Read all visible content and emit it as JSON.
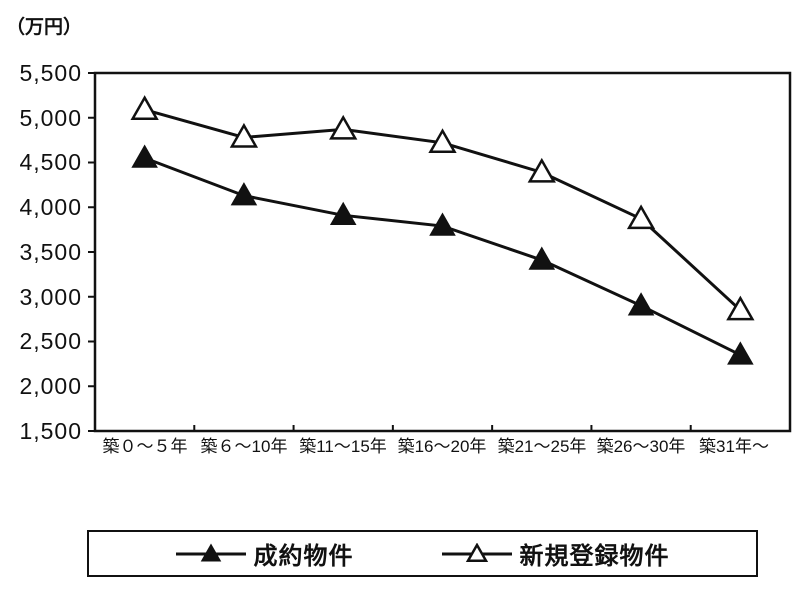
{
  "chart_data": {
    "type": "line",
    "title": "",
    "unit_label": "（万円）",
    "xlabel": "",
    "ylabel": "（万円）",
    "ylim": [
      1500,
      5500
    ],
    "grid": false,
    "legend_position": "bottom",
    "background_color": "#ffffff",
    "line_color": "#111111",
    "categories": [
      "築０～５年",
      "築６～10年",
      "築11～15年",
      "築16～20年",
      "築21～25年",
      "築26～30年",
      "築31年～"
    ],
    "series": [
      {
        "name": "成約物件",
        "marker": "filled-triangle",
        "color": "#111111",
        "values": [
          4550,
          4130,
          3910,
          3790,
          3410,
          2900,
          2350
        ]
      },
      {
        "name": "新規登録物件",
        "marker": "open-triangle",
        "color": "#111111",
        "values": [
          5090,
          4780,
          4870,
          4720,
          4390,
          3870,
          2850
        ]
      }
    ],
    "y_ticks": [
      5500,
      5000,
      4500,
      4000,
      3500,
      3000,
      2500,
      2000,
      1500
    ],
    "y_tick_labels": [
      "5,500",
      "5,000",
      "4,500",
      "4,000",
      "3,500",
      "3,000",
      "2,500",
      "2,000",
      "1,500"
    ]
  }
}
